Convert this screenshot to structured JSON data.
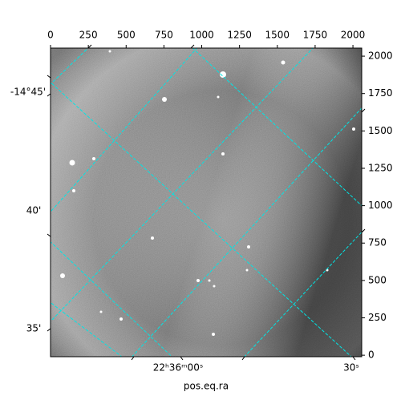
{
  "chart_data": {
    "type": "image",
    "xlabel": "pos.eq.ra",
    "xlim": [
      0,
      2058
    ],
    "ylim": [
      -10,
      2054
    ],
    "xticks": [
      0,
      250,
      500,
      750,
      1000,
      1250,
      1500,
      1750,
      2000
    ],
    "yticks": [
      0,
      250,
      500,
      750,
      1000,
      1250,
      1500,
      1750,
      2000
    ],
    "ra_ticks": [
      "22ʰ36ᵐ00ˢ",
      "30ˢ"
    ],
    "dec_ticks": [
      "-14°45'",
      "40'",
      "35'"
    ],
    "grid_color": "#00e5e5"
  }
}
